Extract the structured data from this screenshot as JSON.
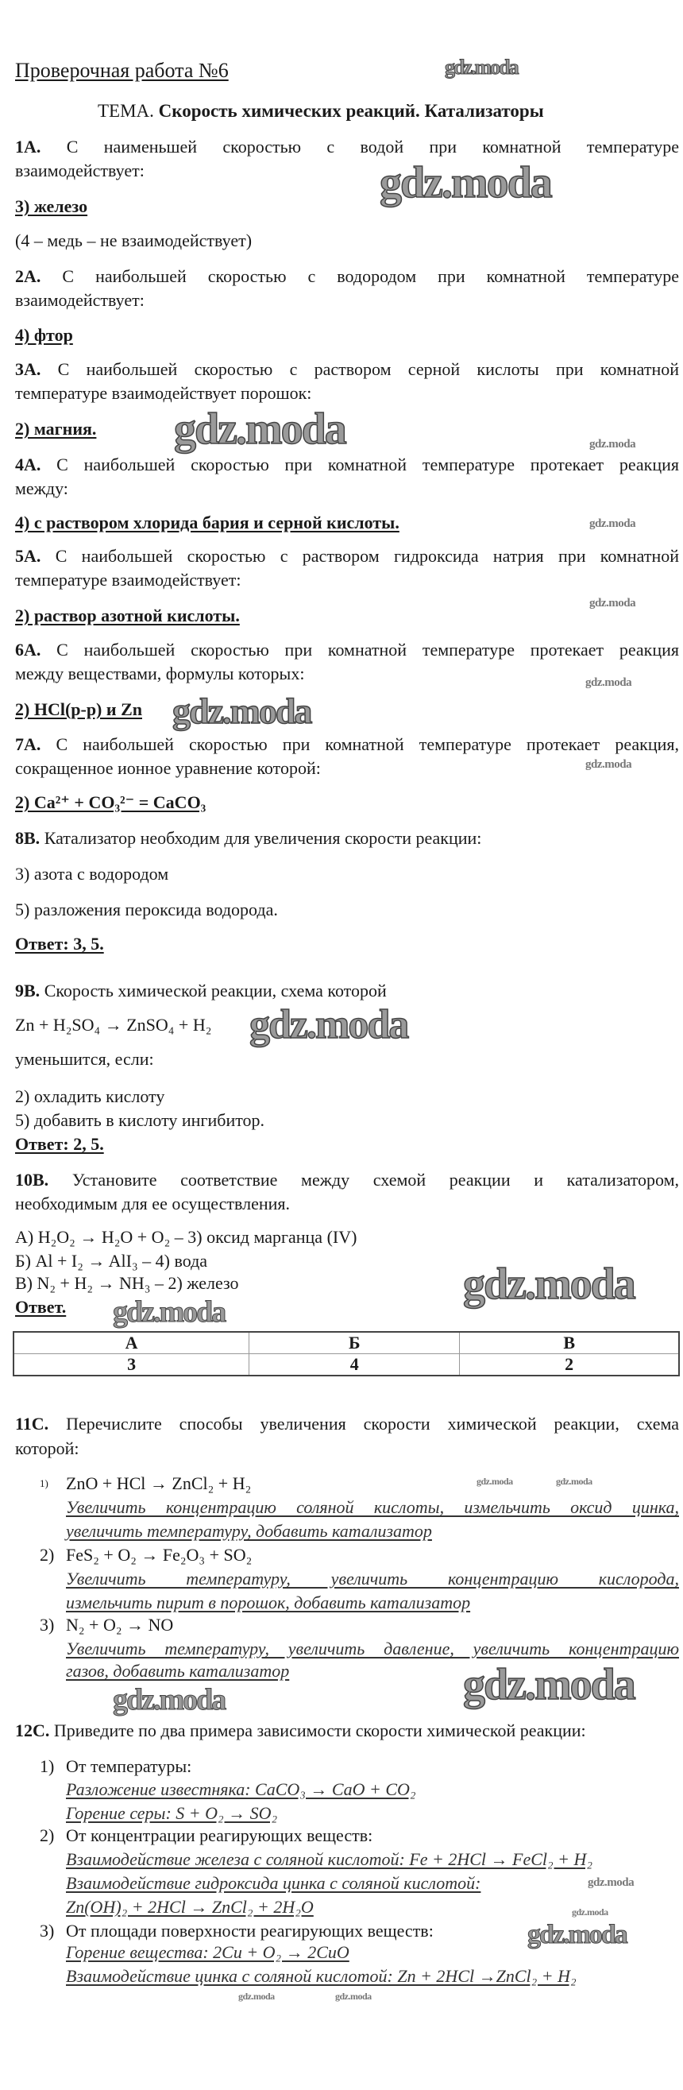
{
  "title": "Проверочная работа №6",
  "topic": {
    "label": "ТЕМА.",
    "text": "Скорость химических реакций. Катализаторы"
  },
  "watermark": "gdz.moda",
  "q1": {
    "num": "1А.",
    "lines": [
      "С наименьшей скоростью с водой при комнатной температуре",
      "взаимодействует:"
    ],
    "answer": "3) железо",
    "note": "(4 – медь – не взаимодействует)"
  },
  "q2": {
    "num": "2А.",
    "lines": [
      "С наибольшей скоростью с водородом при комнатной температуре",
      "взаимодействует:"
    ],
    "answer": "4) фтор"
  },
  "q3": {
    "num": "3А.",
    "lines": [
      "С наибольшей скоростью с раствором серной кислоты при комнатной",
      "температуре взаимодействует порошок:"
    ],
    "answer": "2) магния."
  },
  "q4": {
    "num": "4А.",
    "lines": [
      "С наибольшей скоростью при комнатной температуре протекает реакция",
      "между:"
    ],
    "answer": "4) с раствором хлорида бария и серной кислоты."
  },
  "q5": {
    "num": "5А.",
    "lines": [
      "С наибольшей скоростью с раствором гидроксида натрия при комнатной",
      "температуре взаимодействует:"
    ],
    "answer": "2) раствор азотной кислоты."
  },
  "q6": {
    "num": "6А.",
    "lines": [
      "С наибольшей скоростью при комнатной температуре протекает реакция",
      "между веществами, формулы которых:"
    ],
    "answer": "2) HCl(р-р) и Zn"
  },
  "q7": {
    "num": "7А.",
    "lines": [
      "С наибольшей скоростью при комнатной температуре протекает реакция,",
      "сокращенное ионное уравнение которой:"
    ],
    "answer": "2) Ca²⁺ + CO₃²⁻ = CaCO₃"
  },
  "q8": {
    "num": "8В.",
    "lines": [
      "Катализатор необходим для увеличения скорости реакции:"
    ],
    "options": [
      "3) азота с водородом",
      "5) разложения пероксида водорода."
    ],
    "answer": "Ответ: 3, 5."
  },
  "q9": {
    "num": "9В.",
    "lines": [
      "Скорость химической реакции, схема которой"
    ],
    "scheme": "Zn + H₂SO₄ → ZnSO₄ + H₂",
    "condition": "уменьшится, если:",
    "options": [
      "2) охладить кислоту",
      "5) добавить в кислоту ингибитор."
    ],
    "answer": "Ответ: 2, 5."
  },
  "q10": {
    "num": "10В.",
    "lines": [
      "Установите соответствие между схемой реакции и катализатором,",
      "необходимым для ее осуществления."
    ],
    "pairs": [
      "А) H₂O₂ → H₂O + O₂ – 3) оксид марганца (IV)",
      "Б) Al + I₂ → AlI₃ – 4) вода",
      "В) N₂ + H₂ → NH₃ – 2) железо"
    ],
    "answer_label": "Ответ.",
    "table": {
      "headers": [
        "А",
        "Б",
        "В"
      ],
      "values": [
        "3",
        "4",
        "2"
      ]
    }
  },
  "q11": {
    "num": "11С.",
    "lines": [
      "Перечислите способы увеличения скорости химической реакции, схема",
      "которой:"
    ],
    "items": [
      {
        "n": "1)",
        "eq": "ZnO + HCl → ZnCl₂ + H₂",
        "ans": [
          "Увеличить концентрацию соляной кислоты, измельчить оксид цинка,",
          "увеличить температуру, добавить катализатор"
        ]
      },
      {
        "n": "2)",
        "eq": "FeS₂ + O₂ → Fe₂O₃ + SO₂",
        "ans": [
          "Увеличить температуру, увеличить концентрацию кислорода,",
          "измельчить пирит в порошок, добавить катализатор"
        ]
      },
      {
        "n": "3)",
        "eq": "N₂ + O₂ → NO",
        "ans": [
          "Увеличить температуру, увеличить давление, увеличить концентрацию",
          "газов, добавить катализатор"
        ]
      }
    ]
  },
  "q12": {
    "num": "12С.",
    "lines": [
      "Приведите по два примера зависимости скорости химической реакции:"
    ],
    "items": [
      {
        "n": "1)",
        "head": "От температуры:",
        "ans": [
          "Разложение известняка: CaCO₃ → CaO + CO₂",
          "Горение серы: S + O₂ → SO₂"
        ]
      },
      {
        "n": "2)",
        "head": "От концентрации реагирующих веществ:",
        "ans": [
          "Взаимодействие железа с соляной кислотой: Fe + 2HCl → FeCl₂ + H₂",
          "Взаимодействие гидроксида цинка с соляной кислотой:",
          "Zn(OH)₂ + 2HCl → ZnCl₂ + 2H₂O"
        ]
      },
      {
        "n": "3)",
        "head": "От площади поверхности реагирующих веществ:",
        "ans": [
          "Горение вещества: 2Cu + O₂ → 2CuO",
          "Взаимодействие цинка с соляной кислотой: Zn + 2HCl →ZnCl₂ + H₂"
        ]
      }
    ]
  }
}
